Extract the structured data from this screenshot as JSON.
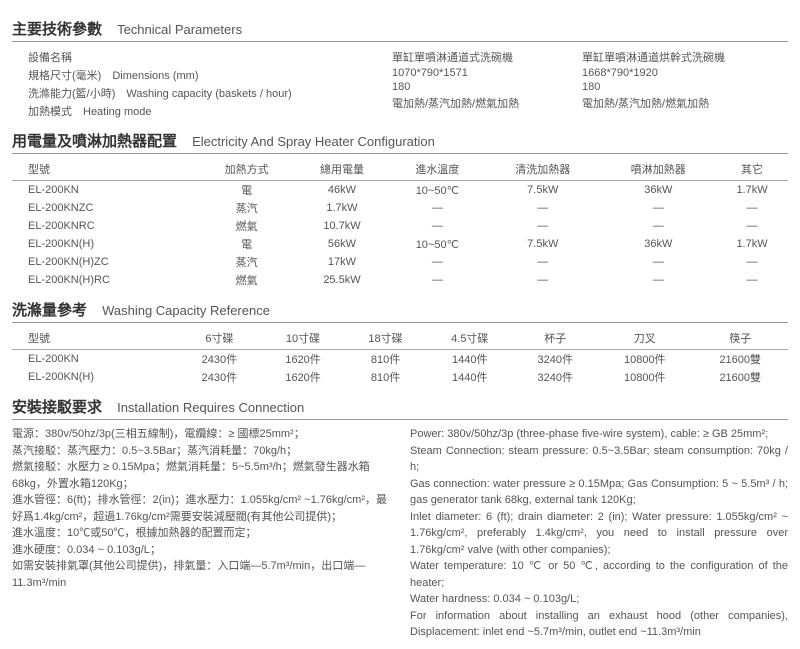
{
  "section1": {
    "title_cn": "主要技術參數",
    "title_en": "Technical Parameters",
    "labels": {
      "name": "設備名稱",
      "dims": "規格尺寸(毫米)　Dimensions (mm)",
      "capacity": "洗滌能力(籃/小時)　Washing capacity (baskets / hour)",
      "heating": "加熱模式　Heating mode"
    },
    "col2": {
      "name": "單缸單噴淋通道式洗碗機",
      "dims": "1070*790*1571",
      "capacity": "180",
      "heating": "電加熱/蒸汽加熱/燃氣加熱"
    },
    "col3": {
      "name": "單缸單噴淋通道烘幹式洗碗機",
      "dims": "1668*790*1920",
      "capacity": "180",
      "heating": "電加熱/蒸汽加熱/燃氣加熱"
    }
  },
  "section2": {
    "title_cn": "用電量及噴淋加熱器配置",
    "title_en": "Electricity And Spray Heater Configuration",
    "headers": [
      "型號",
      "加熱方式",
      "總用電量",
      "進水溫度",
      "清洗加熱器",
      "噴淋加熱器",
      "其它"
    ],
    "rows": [
      [
        "EL-200KN",
        "電",
        "46kW",
        "10~50℃",
        "7.5kW",
        "36kW",
        "1.7kW"
      ],
      [
        "EL-200KNZC",
        "蒸汽",
        "1.7kW",
        "—",
        "—",
        "—",
        "—"
      ],
      [
        "EL-200KNRC",
        "燃氣",
        "10.7kW",
        "—",
        "—",
        "—",
        "—"
      ],
      [
        "EL-200KN(H)",
        "電",
        "56kW",
        "10~50℃",
        "7.5kW",
        "36kW",
        "1.7kW"
      ],
      [
        "EL-200KN(H)ZC",
        "蒸汽",
        "17kW",
        "—",
        "—",
        "—",
        "—"
      ],
      [
        "EL-200KN(H)RC",
        "燃氣",
        "25.5kW",
        "—",
        "—",
        "—",
        "—"
      ]
    ]
  },
  "section3": {
    "title_cn": "洗滌量參考",
    "title_en": "Washing Capacity Reference",
    "headers": [
      "型號",
      "6寸碟",
      "10寸碟",
      "18寸碟",
      "4.5寸碟",
      "杯子",
      "刀叉",
      "筷子"
    ],
    "rows": [
      [
        "EL-200KN",
        "2430件",
        "1620件",
        "810件",
        "1440件",
        "3240件",
        "10800件",
        "21600雙"
      ],
      [
        "EL-200KN(H)",
        "2430件",
        "1620件",
        "810件",
        "1440件",
        "3240件",
        "10800件",
        "21600雙"
      ]
    ]
  },
  "section4": {
    "title_cn": "安裝接駁要求",
    "title_en": "Installation Requires Connection",
    "left": [
      "電源：380v/50hz/3p(三相五線制)，電纜線：≥ 國標25mm²；",
      "蒸汽接駁：蒸汽壓力：0.5~3.5Bar；蒸汽消耗量：70kg/h；",
      "燃氣接駁：水壓力 ≥ 0.15Mpa；燃氣消耗量：5~5.5m³/h；燃氣發生器水箱68kg，外置水箱120Kg；",
      "進水管徑：6(ft)；排水管徑：2(in)；進水壓力：1.055kg/cm² ~1.76kg/cm²，最好爲1.4kg/cm²，超過1.76kg/cm²需要安裝減壓閥(有其他公司提供)；",
      "進水溫度：10℃或50℃，根據加熱器的配置而定；",
      "進水硬度：0.034 ~ 0.103g/L；",
      "如需安裝排氣罩(其他公司提供)，排氣量：入口端—5.7m³/min，出口端—11.3m³/min"
    ],
    "right": [
      "Power: 380v/50hz/3p (three-phase five-wire system), cable: ≥ GB 25mm²;",
      "Steam Connection: steam pressure: 0.5~3.5Bar; steam consumption: 70kg / h;",
      "Gas connection: water pressure ≥ 0.15Mpa; Gas Consumption: 5 ~ 5.5m³ / h; gas generator tank 68kg, external tank 120Kg;",
      "Inlet diameter: 6 (ft); drain diameter: 2 (in); Water pressure: 1.055kg/cm² ~ 1.76kg/cm², preferably 1.4kg/cm², you need to install pressure over 1.76kg/cm² valve (with other companies);",
      "Water temperature: 10 ℃ or 50 ℃, according to the configuration of the heater;",
      "Water hardness: 0.034 ~ 0.103g/L;",
      "For information about installing an exhaust hood (other companies), Displacement: inlet end ~5.7m³/min, outlet end ~11.3m³/min"
    ]
  }
}
